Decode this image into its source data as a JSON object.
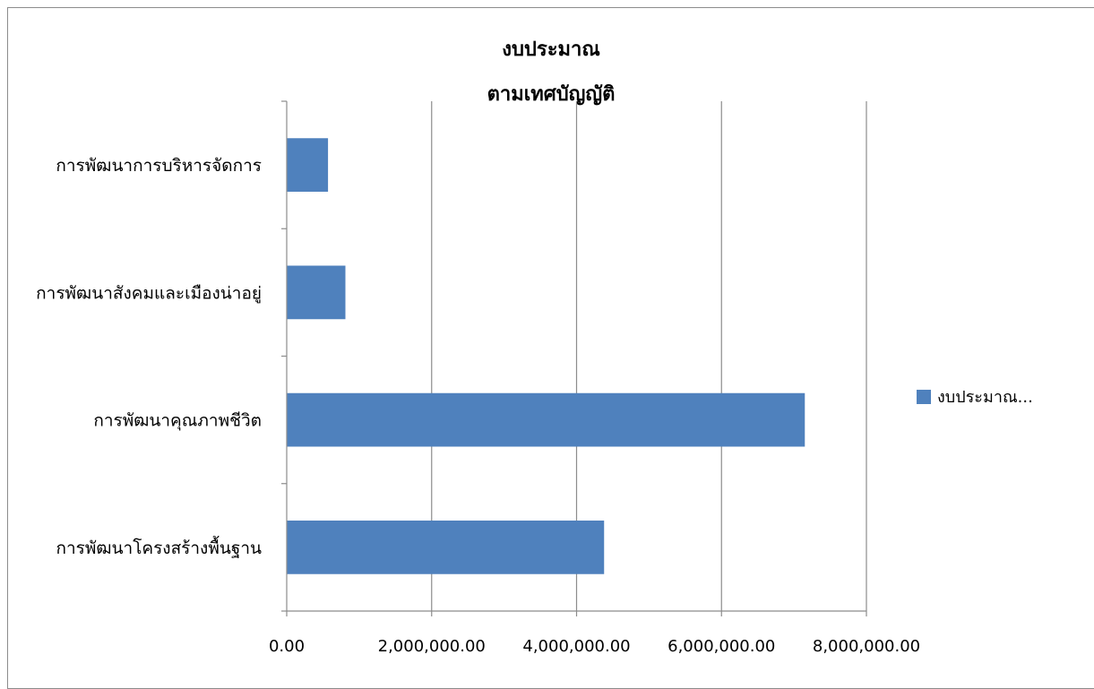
{
  "chart_data": {
    "type": "bar",
    "orientation": "horizontal",
    "title_lines": [
      "งบประมาณ",
      "ตามเทศบัญญัติ"
    ],
    "categories": [
      "การพัฒนาโครงสร้างพื้นฐาน",
      "การพัฒนาคุณภาพชีวิต",
      "การพัฒนาสังคมและเมืองน่าอยู่",
      "การพัฒนาการบริหารจัดการ"
    ],
    "series": [
      {
        "name": "งบประมาณ...",
        "color": "#4f81bd",
        "values": [
          4380000,
          7150000,
          810000,
          570000
        ]
      }
    ],
    "xlim": [
      0,
      8000000
    ],
    "x_ticks": [
      0,
      2000000,
      4000000,
      6000000,
      8000000
    ],
    "x_tick_labels": [
      "0.00",
      "2,000,000.00",
      "4,000,000.00",
      "6,000,000.00",
      "8,000,000.00"
    ],
    "grid": "vertical major",
    "legend_position": "right"
  }
}
